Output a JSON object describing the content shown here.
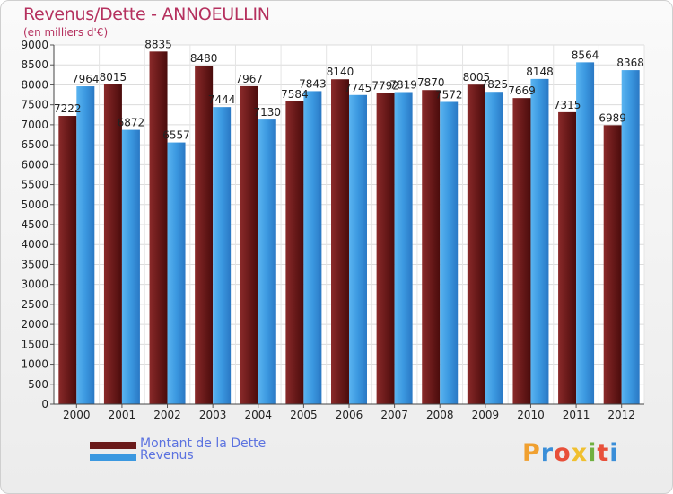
{
  "title": "Revenus/Dette - ANNOEULLIN",
  "subtitle": "(en milliers d'€)",
  "logo": {
    "text": "Proxiti",
    "letter_colors": [
      "#f0a030",
      "#3a8ed8",
      "#e8503a",
      "#f0c030",
      "#70b040",
      "#e8503a",
      "#3a8ed8"
    ]
  },
  "chart_data": {
    "type": "bar",
    "categories": [
      "2000",
      "2001",
      "2002",
      "2003",
      "2004",
      "2005",
      "2006",
      "2007",
      "2008",
      "2009",
      "2010",
      "2011",
      "2012"
    ],
    "series": [
      {
        "name": "Montant de la Dette",
        "color": "#7a2323",
        "values": [
          7222,
          8015,
          8835,
          8480,
          7967,
          7584,
          8140,
          7792,
          7870,
          8005,
          7669,
          7315,
          6989
        ]
      },
      {
        "name": "Revenus",
        "color": "#4aa8ec",
        "values": [
          7964,
          6872,
          6557,
          7444,
          7130,
          7843,
          7745,
          7819,
          7572,
          7825,
          8148,
          8564,
          8368
        ]
      }
    ],
    "ylim": [
      0,
      9000
    ],
    "ytick_step": 500,
    "grid": true,
    "legend": "bottom-left"
  }
}
